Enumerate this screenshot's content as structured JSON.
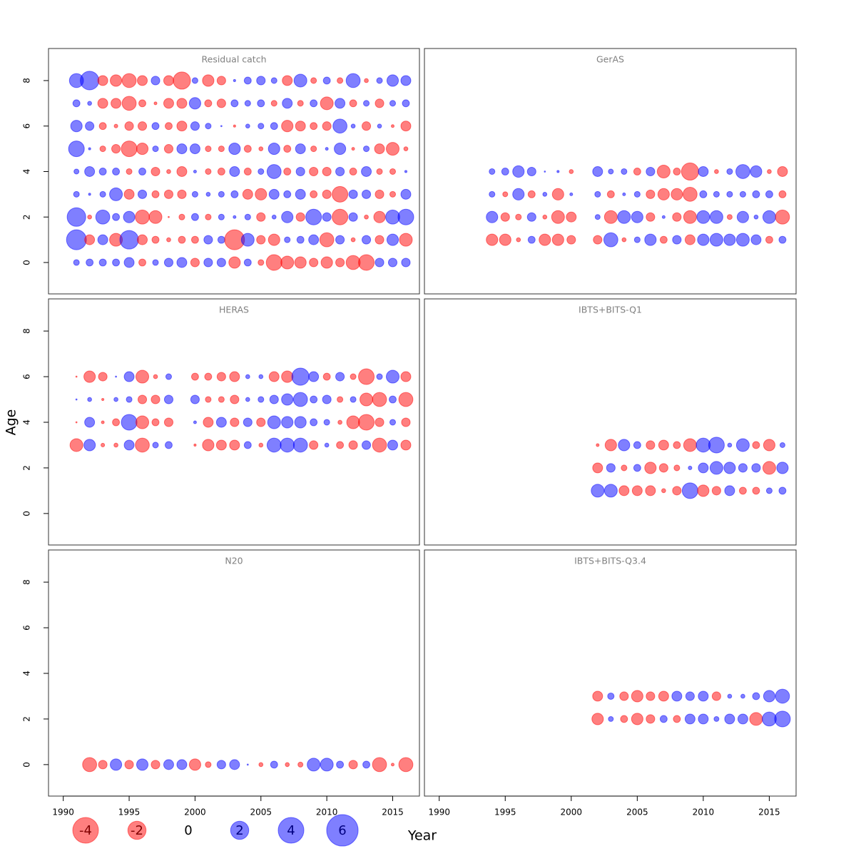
{
  "chart_data": {
    "type": "bubble",
    "xlabel": "Year",
    "ylabel": "Age",
    "xlim": [
      1988.88,
      2017.03
    ],
    "xticks": [
      1990,
      1995,
      2000,
      2005,
      2010,
      2015
    ],
    "ylim": [
      -1.38,
      9.41
    ],
    "yticks": [
      0,
      2,
      4,
      6,
      8
    ],
    "negative_color": "#ff0000",
    "positive_color": "#0000ff",
    "legend": [
      -4,
      -2,
      0,
      2,
      4,
      6
    ],
    "panels": [
      {
        "title": "Residual catch",
        "x": [
          1991,
          1992,
          1993,
          1994,
          1995,
          1996,
          1997,
          1998,
          1999,
          2000,
          2001,
          2002,
          2003,
          2004,
          2005,
          2006,
          2007,
          2008,
          2009,
          2010,
          2011,
          2012,
          2013,
          2014,
          2015,
          2016
        ],
        "ages": [
          8,
          7,
          6,
          5,
          4,
          3,
          2,
          1,
          0
        ],
        "values": [
          [
            1.2,
            2.1,
            -0.6,
            -0.8,
            -1.2,
            -0.6,
            0.45,
            -0.6,
            -1.8,
            0.2,
            -0.8,
            -0.45,
            0.03,
            0.3,
            0.45,
            0.2,
            -0.6,
            1.0,
            -0.2,
            0.3,
            -0.2,
            1.2,
            -0.1,
            0.2,
            0.8,
            0.6
          ],
          [
            0.3,
            0.1,
            -0.6,
            -0.6,
            -1.2,
            -0.3,
            -0.05,
            -0.6,
            -0.6,
            0.8,
            -0.3,
            -0.45,
            0.3,
            0.2,
            0.3,
            -0.2,
            0.6,
            -0.2,
            0.3,
            -1.0,
            0.6,
            -0.3,
            0.2,
            -0.45,
            0.2,
            0.3
          ],
          [
            0.8,
            0.45,
            -0.3,
            -0.08,
            -0.45,
            -0.45,
            0.3,
            -0.3,
            -0.6,
            0.45,
            0.2,
            0.01,
            -0.03,
            0.1,
            0.2,
            0.3,
            -0.8,
            -0.6,
            -0.3,
            -0.45,
            1.2,
            0.1,
            -0.45,
            0.1,
            -0.05,
            -0.6
          ],
          [
            1.5,
            0.03,
            -0.2,
            -0.45,
            -1.5,
            -0.8,
            0.2,
            -0.45,
            0.6,
            0.6,
            -0.2,
            -0.2,
            0.8,
            -0.3,
            -0.1,
            0.8,
            -0.3,
            0.6,
            -0.2,
            0.05,
            0.8,
            -0.05,
            0.2,
            -0.6,
            -1.0,
            -0.1
          ],
          [
            0.15,
            0.6,
            0.3,
            0.3,
            -0.2,
            0.3,
            -0.45,
            -0.1,
            -0.6,
            0.05,
            -0.2,
            -0.3,
            0.6,
            -0.3,
            0.2,
            1.2,
            -0.3,
            0.45,
            -0.45,
            -0.45,
            0.45,
            -0.3,
            0.6,
            -0.2,
            -0.2,
            0.03
          ],
          [
            0.2,
            0.03,
            0.2,
            1.0,
            -0.6,
            0.45,
            -0.3,
            -0.45,
            -0.45,
            0.2,
            0.1,
            0.2,
            0.3,
            -0.6,
            -0.8,
            0.6,
            0.3,
            0.6,
            -0.3,
            -0.45,
            -1.5,
            0.45,
            0.45,
            -0.45,
            -0.2,
            0.6
          ],
          [
            2.1,
            -0.1,
            1.2,
            0.3,
            0.8,
            -1.2,
            -1.0,
            -0.01,
            -0.2,
            0.3,
            -0.2,
            0.2,
            0.05,
            0.2,
            -0.45,
            0.1,
            0.8,
            -0.45,
            1.5,
            0.45,
            -1.5,
            0.45,
            -0.1,
            -0.8,
            1.2,
            1.5
          ],
          [
            2.4,
            -0.6,
            0.6,
            -1.0,
            2.1,
            -0.6,
            -0.3,
            -0.1,
            -0.3,
            -0.3,
            0.45,
            0.3,
            -2.4,
            1.0,
            -0.45,
            -0.8,
            0.2,
            0.3,
            0.6,
            -1.2,
            0.45,
            -0.1,
            0.45,
            -0.45,
            0.8,
            -1.0
          ],
          [
            0.2,
            0.3,
            0.3,
            0.3,
            0.6,
            -0.3,
            0.2,
            0.45,
            0.6,
            -0.45,
            0.45,
            0.45,
            -0.8,
            0.3,
            -0.2,
            -1.5,
            -1.0,
            -0.8,
            -0.45,
            -0.8,
            -0.45,
            -1.2,
            -1.5,
            0.45,
            0.45,
            0.45
          ]
        ]
      },
      {
        "title": "GerAS",
        "x": [
          1994,
          1995,
          1996,
          1997,
          1998,
          1999,
          2000,
          2002,
          2003,
          2004,
          2005,
          2006,
          2007,
          2008,
          2009,
          2010,
          2011,
          2012,
          2013,
          2014,
          2015,
          2016
        ],
        "ages": [
          4,
          3,
          2,
          1
        ],
        "values": [
          [
            0.2,
            0.3,
            0.8,
            0.45,
            0.01,
            0.03,
            -0.1,
            0.6,
            0.15,
            0.2,
            -0.3,
            0.45,
            -1.0,
            -0.3,
            -1.8,
            0.6,
            -0.1,
            0.2,
            1.2,
            0.8,
            -0.1,
            -0.6
          ],
          [
            0.2,
            -0.15,
            0.8,
            -0.3,
            0.1,
            -0.8,
            0.05,
            0.2,
            -0.3,
            0.05,
            0.2,
            -0.45,
            -0.8,
            -0.8,
            -1.2,
            0.3,
            0.2,
            0.2,
            0.2,
            0.3,
            0.3,
            -0.3
          ],
          [
            0.8,
            -0.45,
            -0.2,
            0.45,
            -0.1,
            -1.0,
            -0.6,
            0.15,
            -1.0,
            1.0,
            0.8,
            -0.45,
            0.05,
            -0.45,
            -1.0,
            1.0,
            1.0,
            -0.15,
            0.8,
            0.1,
            1.0,
            -1.2
          ],
          [
            -0.8,
            -0.8,
            -0.1,
            0.3,
            -0.8,
            -0.8,
            -0.45,
            -0.45,
            1.2,
            -0.1,
            0.2,
            0.8,
            -0.3,
            0.45,
            -0.6,
            0.8,
            1.0,
            0.8,
            1.0,
            0.6,
            -0.3,
            0.3
          ]
        ]
      },
      {
        "title": "HERAS",
        "x": [
          1991,
          1992,
          1993,
          1994,
          1995,
          1996,
          1997,
          1998,
          2000,
          2001,
          2002,
          2003,
          2004,
          2005,
          2006,
          2007,
          2008,
          2009,
          2010,
          2011,
          2012,
          2013,
          2014,
          2015,
          2016
        ],
        "ages": [
          6,
          5,
          4,
          3
        ],
        "values": [
          [
            -0.01,
            -0.8,
            -0.45,
            0.01,
            0.6,
            -1.0,
            -0.1,
            0.2,
            -0.3,
            -0.3,
            -0.45,
            -0.6,
            0.1,
            0.1,
            -0.6,
            -0.8,
            1.8,
            0.6,
            -0.3,
            0.45,
            -0.2,
            -1.5,
            0.2,
            1.0,
            -0.6
          ],
          [
            0.01,
            0.1,
            -0.03,
            0.1,
            0.2,
            -0.45,
            -0.45,
            0.45,
            0.45,
            -0.2,
            -0.2,
            -0.45,
            0.1,
            0.2,
            0.45,
            0.8,
            1.2,
            0.3,
            0.45,
            -0.2,
            0.2,
            -1.0,
            -1.2,
            0.3,
            -1.2
          ],
          [
            -0.01,
            0.6,
            -0.05,
            -0.3,
            1.5,
            -1.0,
            -0.3,
            -0.45,
            0.05,
            -0.6,
            0.6,
            -0.45,
            0.45,
            -0.45,
            1.0,
            0.8,
            0.8,
            0.3,
            0.2,
            -0.1,
            -1.0,
            -1.5,
            -0.45,
            0.2,
            -0.45
          ],
          [
            -1.0,
            0.8,
            -0.08,
            -0.1,
            0.6,
            -1.2,
            0.2,
            0.3,
            -0.03,
            -0.8,
            -0.6,
            -0.6,
            0.3,
            -0.1,
            1.2,
            1.2,
            1.2,
            -0.45,
            0.1,
            -0.3,
            -0.45,
            0.45,
            -1.2,
            0.6,
            -0.6
          ]
        ]
      },
      {
        "title": "IBTS+BITS-Q1",
        "x": [
          2002,
          2003,
          2004,
          2005,
          2006,
          2007,
          2008,
          2009,
          2010,
          2011,
          2012,
          2013,
          2014,
          2015,
          2016
        ],
        "ages": [
          3,
          2,
          1
        ],
        "values": [
          [
            -0.05,
            -0.8,
            0.8,
            0.3,
            -0.45,
            -0.6,
            -0.3,
            -1.0,
            1.2,
            1.5,
            0.1,
            1.0,
            -0.3,
            -0.8,
            0.15
          ],
          [
            -0.6,
            0.45,
            -0.2,
            0.3,
            -0.8,
            -0.45,
            -0.2,
            0.08,
            0.6,
            1.0,
            0.8,
            0.45,
            0.45,
            -1.0,
            0.8
          ],
          [
            1.0,
            1.0,
            -0.6,
            -0.6,
            -0.6,
            -0.1,
            -0.45,
            1.5,
            -0.8,
            -0.45,
            0.6,
            -0.3,
            -0.3,
            0.2,
            0.3
          ]
        ]
      },
      {
        "title": "N20",
        "x": [
          1992,
          1993,
          1994,
          1995,
          1996,
          1997,
          1998,
          1999,
          2000,
          2001,
          2002,
          2003,
          2004,
          2005,
          2006,
          2007,
          2008,
          2009,
          2010,
          2011,
          2012,
          2013,
          2014,
          2015,
          2016
        ],
        "ages": [
          0
        ],
        "values": [
          [
            -1.2,
            -0.45,
            0.8,
            -0.45,
            0.8,
            -0.45,
            0.6,
            0.6,
            -0.8,
            -0.2,
            0.45,
            0.6,
            0.01,
            -0.1,
            0.3,
            -0.1,
            -0.15,
            1.0,
            1.0,
            0.3,
            -0.45,
            0.3,
            -1.2,
            -0.05,
            -1.2
          ]
        ]
      },
      {
        "title": "IBTS+BITS-Q3.4",
        "x": [
          2002,
          2003,
          2004,
          2005,
          2006,
          2007,
          2008,
          2009,
          2010,
          2011,
          2012,
          2013,
          2014,
          2015,
          2016
        ],
        "ages": [
          3,
          2
        ],
        "values": [
          [
            -0.6,
            0.25,
            -0.45,
            -0.8,
            -0.45,
            -0.6,
            0.6,
            0.45,
            0.6,
            -0.45,
            0.1,
            0.1,
            0.3,
            0.8,
            1.2
          ],
          [
            -0.8,
            0.15,
            -0.3,
            -0.8,
            -0.45,
            0.3,
            -0.3,
            0.6,
            0.6,
            0.15,
            0.6,
            0.6,
            -1.0,
            1.2,
            1.5
          ]
        ]
      }
    ]
  }
}
